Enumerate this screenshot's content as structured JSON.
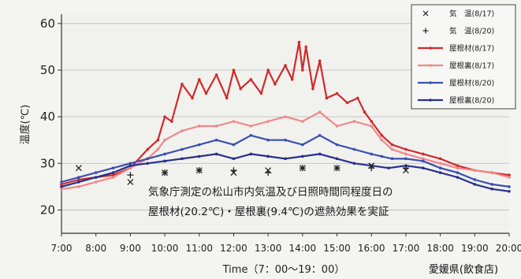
{
  "chart_data": {
    "type": "line",
    "title": "",
    "xlabel": "Time（7：00〜19：00）",
    "ylabel": "温度(℃)",
    "ylim": [
      15,
      62
    ],
    "yticks": [
      20,
      30,
      40,
      50,
      60
    ],
    "xlim": [
      7,
      20
    ],
    "xtick_values": [
      7,
      8,
      9,
      10,
      11,
      12,
      13,
      14,
      15,
      16,
      17,
      18,
      19,
      20
    ],
    "xtick_labels": [
      "7:00",
      "8:00",
      "9:00",
      "10:00",
      "11:00",
      "12:00",
      "13:00",
      "14:00",
      "15:00",
      "16:00",
      "17:00",
      "18:00",
      "19:00",
      "20:00"
    ],
    "grid": true,
    "legend_position": "top-right",
    "series": [
      {
        "name": "屋根材(8/17)",
        "color": "#d02a2a",
        "marker": "dot",
        "x": [
          7,
          7.5,
          8,
          8.5,
          9,
          9.5,
          9.8,
          10,
          10.2,
          10.5,
          10.8,
          11,
          11.2,
          11.5,
          11.8,
          12,
          12.2,
          12.5,
          12.8,
          13,
          13.2,
          13.5,
          13.7,
          13.9,
          14,
          14.1,
          14.3,
          14.5,
          14.7,
          15,
          15.3,
          15.6,
          15.8,
          16,
          16.3,
          16.6,
          17,
          17.5,
          18,
          18.5,
          19,
          19.5,
          20
        ],
        "y": [
          25.5,
          26.5,
          27,
          27.5,
          29,
          33,
          35,
          40,
          39,
          47,
          44,
          48,
          45,
          49,
          44,
          50,
          46,
          48,
          45,
          50,
          47,
          51,
          48,
          56,
          50,
          55,
          46,
          52,
          44,
          45,
          43,
          44,
          41,
          39,
          36,
          34,
          33,
          32,
          31,
          29.5,
          28.5,
          28,
          27.5
        ]
      },
      {
        "name": "屋根裏(8/17)",
        "color": "#ef8888",
        "marker": "dot",
        "x": [
          7,
          7.5,
          8,
          8.5,
          9,
          9.5,
          9.8,
          10,
          10.5,
          11,
          11.5,
          12,
          12.5,
          13,
          13.5,
          14,
          14.5,
          15,
          15.5,
          16,
          16.3,
          16.6,
          17,
          17.5,
          18,
          18.5,
          19,
          19.5,
          20
        ],
        "y": [
          24.5,
          25,
          26,
          27,
          29,
          31,
          33,
          35,
          37,
          38,
          38,
          39,
          38,
          39,
          40,
          39,
          41,
          38,
          39,
          38,
          35,
          33,
          32,
          31,
          30,
          29,
          28.5,
          28,
          27
        ]
      },
      {
        "name": "屋根材(8/20)",
        "color": "#3b4fb0",
        "marker": "dot",
        "x": [
          7,
          7.5,
          8,
          8.5,
          9,
          9.5,
          10,
          10.5,
          11,
          11.5,
          12,
          12.5,
          13,
          13.5,
          14,
          14.5,
          15,
          15.5,
          16,
          16.3,
          16.6,
          17,
          17.5,
          18,
          18.5,
          19,
          19.5,
          20
        ],
        "y": [
          26,
          27,
          28,
          29,
          30,
          31,
          32,
          33,
          34,
          35,
          34,
          36,
          35,
          35,
          34,
          36,
          34,
          33,
          32,
          31.5,
          31,
          31,
          30.5,
          29,
          28,
          26.5,
          25.5,
          25
        ]
      },
      {
        "name": "屋根裏(8/20)",
        "color": "#26318a",
        "marker": "dot",
        "x": [
          7,
          7.5,
          8,
          8.5,
          9,
          9.5,
          10,
          10.5,
          11,
          11.5,
          12,
          12.5,
          13,
          13.5,
          14,
          14.5,
          15,
          15.5,
          16,
          16.5,
          17,
          17.5,
          18,
          18.5,
          19,
          19.5,
          20
        ],
        "y": [
          25,
          26,
          27,
          28,
          29.5,
          30,
          30.5,
          31,
          31.5,
          32,
          31,
          32,
          31.5,
          31,
          31.5,
          32,
          31,
          30,
          29.5,
          29,
          29.5,
          29,
          28,
          27,
          25.5,
          24.5,
          24
        ]
      },
      {
        "name": "気　温(8/17)",
        "color": "#222222",
        "marker": "x",
        "x": [
          7.5,
          9,
          10,
          11,
          12,
          13,
          14,
          15,
          16,
          17
        ],
        "y": [
          29,
          26,
          28,
          28.5,
          28,
          28.5,
          29,
          29,
          29.5,
          28.5
        ]
      },
      {
        "name": "気　温(8/20)",
        "color": "#222222",
        "marker": "plus",
        "x": [
          9,
          10,
          11,
          12,
          13,
          14,
          15,
          16,
          17
        ],
        "y": [
          27.5,
          28,
          28.5,
          28.5,
          28,
          29,
          29,
          29,
          29
        ]
      }
    ],
    "annotation_lines": [
      "気象庁測定の松山市内気温及び日照時間同程度日の",
      "屋根材(20.2℃)・屋根裏(9.4℃)の遮熱効果を実証"
    ],
    "footer": "愛媛県(飲食店)"
  }
}
